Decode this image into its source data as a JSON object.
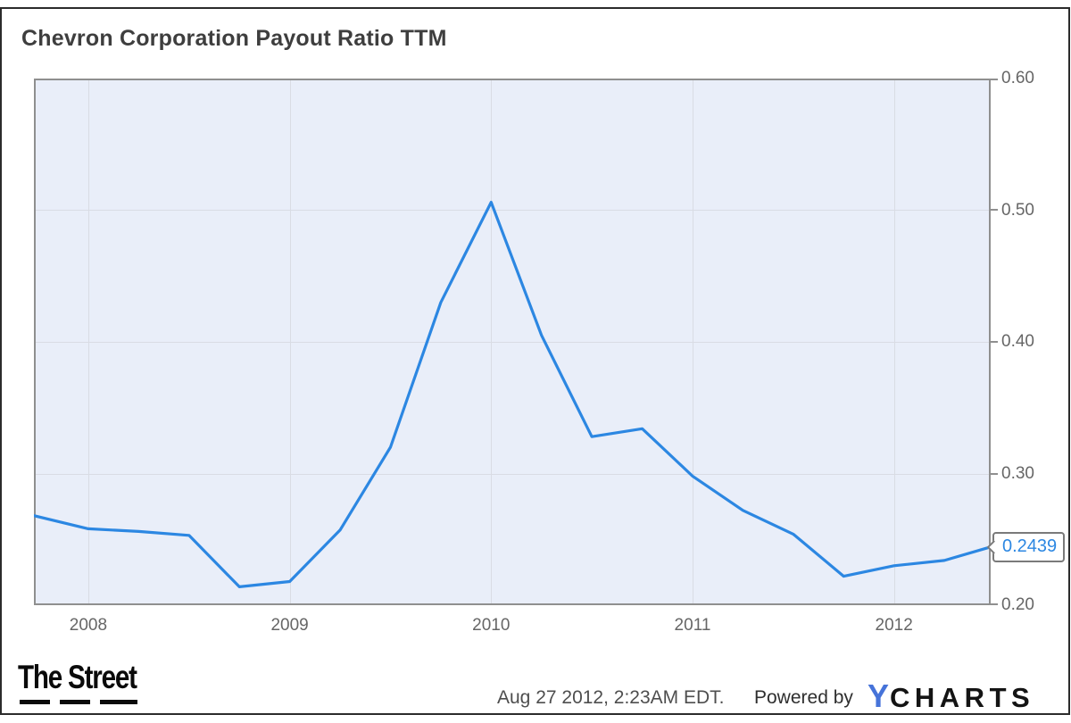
{
  "page": {
    "title": "Chevron Corporation Payout Ratio TTM"
  },
  "colors": {
    "line": "#2c87e2",
    "plot_background": "#e9eef9",
    "grid": "#d9dce4",
    "plot_border": "#8f8f8f",
    "value_label_text": "#2c87e2",
    "ycharts_blue": "#4673d9"
  },
  "current_value": {
    "label": "0.2439"
  },
  "footer": {
    "brand": "The Street",
    "timestamp": "Aug 27 2012, 2:23AM EDT.",
    "powered_by_label": "Powered by",
    "ycharts_y": "Y",
    "ycharts_charts": "CHARTS"
  },
  "chart_data": {
    "type": "line",
    "title": "Chevron Corporation Payout Ratio TTM",
    "xlabel": "",
    "ylabel": "",
    "xlim": [
      2007.73,
      2012.48
    ],
    "ylim": [
      0.2,
      0.6
    ],
    "grid": true,
    "legend": false,
    "x_ticks": [
      {
        "value": 2008,
        "label": "2008"
      },
      {
        "value": 2009,
        "label": "2009"
      },
      {
        "value": 2010,
        "label": "2010"
      },
      {
        "value": 2011,
        "label": "2011"
      },
      {
        "value": 2012,
        "label": "2012"
      }
    ],
    "y_ticks": [
      {
        "value": 0.6,
        "label": "0.60"
      },
      {
        "value": 0.5,
        "label": "0.50"
      },
      {
        "value": 0.4,
        "label": "0.40"
      },
      {
        "value": 0.3,
        "label": "0.30"
      },
      {
        "value": 0.2,
        "label": "0.20"
      }
    ],
    "series": [
      {
        "name": "Chevron Corporation Payout Ratio TTM",
        "points": [
          [
            2007.73,
            0.268
          ],
          [
            2008.0,
            0.258
          ],
          [
            2008.25,
            0.256
          ],
          [
            2008.5,
            0.253
          ],
          [
            2008.75,
            0.214
          ],
          [
            2009.0,
            0.218
          ],
          [
            2009.25,
            0.257
          ],
          [
            2009.5,
            0.32
          ],
          [
            2009.75,
            0.43
          ],
          [
            2010.0,
            0.506
          ],
          [
            2010.25,
            0.405
          ],
          [
            2010.5,
            0.328
          ],
          [
            2010.75,
            0.334
          ],
          [
            2011.0,
            0.298
          ],
          [
            2011.25,
            0.272
          ],
          [
            2011.5,
            0.254
          ],
          [
            2011.75,
            0.222
          ],
          [
            2012.0,
            0.23
          ],
          [
            2012.25,
            0.234
          ],
          [
            2012.48,
            0.2439
          ]
        ]
      }
    ],
    "last_value_annotation": "0.2439"
  }
}
